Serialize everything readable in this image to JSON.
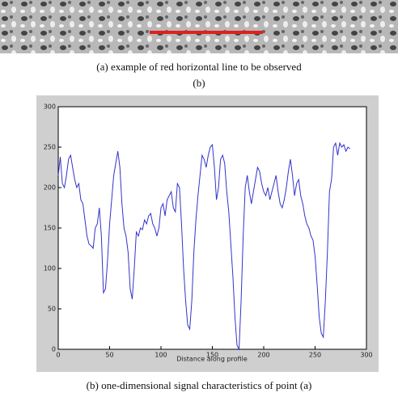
{
  "figure": {
    "caption_a": "(a)    example of red horizontal line to be observed",
    "label_b": "(b)",
    "caption_b": "(b) one-dimensional signal characteristics of point (a)"
  },
  "chart_data": {
    "type": "line",
    "xlabel": "Distance along profile",
    "x": [
      0,
      2,
      4,
      6,
      8,
      10,
      12,
      14,
      16,
      18,
      20,
      22,
      24,
      26,
      28,
      30,
      32,
      34,
      36,
      38,
      40,
      42,
      44,
      46,
      48,
      50,
      52,
      54,
      56,
      58,
      60,
      62,
      64,
      66,
      68,
      70,
      72,
      74,
      76,
      78,
      80,
      82,
      84,
      86,
      88,
      90,
      92,
      94,
      96,
      98,
      100,
      102,
      104,
      106,
      108,
      110,
      112,
      114,
      116,
      118,
      120,
      122,
      124,
      126,
      128,
      130,
      132,
      134,
      136,
      138,
      140,
      142,
      144,
      146,
      148,
      150,
      152,
      154,
      156,
      158,
      160,
      162,
      164,
      166,
      168,
      170,
      172,
      174,
      176,
      178,
      180,
      182,
      184,
      186,
      188,
      190,
      192,
      194,
      196,
      198,
      200,
      202,
      204,
      206,
      208,
      210,
      212,
      214,
      216,
      218,
      220,
      222,
      224,
      226,
      228,
      230,
      232,
      234,
      236,
      238,
      240,
      242,
      244,
      246,
      248,
      250,
      252,
      254,
      256,
      258,
      260,
      262,
      264,
      266,
      268,
      270,
      272,
      274,
      276,
      278,
      280,
      282,
      284
    ],
    "series": [
      {
        "color": "#3333cc",
        "values": [
          215,
          238,
          205,
          200,
          215,
          235,
          240,
          225,
          210,
          200,
          205,
          185,
          180,
          160,
          140,
          130,
          128,
          125,
          150,
          155,
          175,
          140,
          70,
          75,
          110,
          155,
          185,
          215,
          230,
          245,
          225,
          180,
          150,
          140,
          120,
          75,
          62,
          100,
          145,
          140,
          150,
          148,
          160,
          155,
          165,
          168,
          155,
          150,
          140,
          150,
          175,
          180,
          165,
          185,
          190,
          195,
          175,
          170,
          205,
          200,
          155,
          100,
          60,
          30,
          25,
          60,
          120,
          160,
          190,
          215,
          240,
          235,
          225,
          240,
          250,
          253,
          225,
          185,
          200,
          235,
          240,
          230,
          195,
          170,
          130,
          90,
          40,
          5,
          0,
          60,
          140,
          200,
          215,
          195,
          180,
          195,
          210,
          225,
          220,
          205,
          195,
          190,
          200,
          185,
          195,
          205,
          215,
          195,
          180,
          175,
          185,
          200,
          220,
          235,
          215,
          190,
          205,
          210,
          190,
          180,
          165,
          155,
          150,
          140,
          135,
          115,
          80,
          40,
          20,
          15,
          60,
          120,
          195,
          210,
          250,
          255,
          240,
          255,
          250,
          253,
          245,
          250,
          248
        ]
      }
    ],
    "xlim": [
      0,
      300
    ],
    "xticks": [
      0,
      50,
      100,
      150,
      200,
      250,
      300
    ],
    "ylim": [
      0,
      300
    ],
    "yticks": [
      0,
      50,
      100,
      150,
      200,
      250,
      300
    ]
  }
}
